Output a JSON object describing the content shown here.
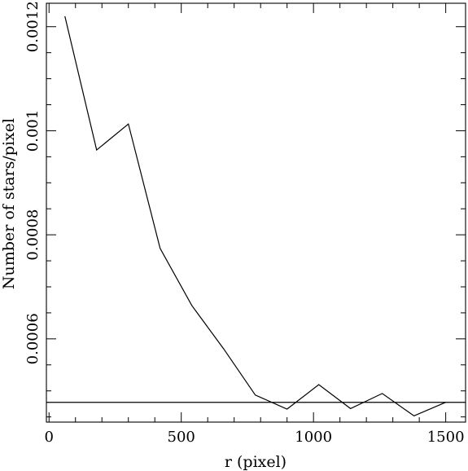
{
  "chart_data": {
    "type": "line",
    "xlabel": "r (pixel)",
    "ylabel": "Number of stars/pixel",
    "xlim": [
      -10,
      1575
    ],
    "ylim": [
      0.00044,
      0.001245
    ],
    "grid": false,
    "x_ticks": [
      0,
      500,
      1000,
      1500
    ],
    "x_tick_labels": [
      "0",
      "500",
      "1000",
      "1500"
    ],
    "y_ticks": [
      0.0006,
      0.0008,
      0.001,
      0.0012
    ],
    "y_tick_labels": [
      "0.0006",
      "0.0008",
      "0.001",
      "0.0012"
    ],
    "series": [
      {
        "x": [
          60,
          180,
          300,
          420,
          540,
          660,
          780,
          900,
          1020,
          1140,
          1260,
          1380,
          1500
        ],
        "y": [
          0.00122,
          0.000963,
          0.001013,
          0.000774,
          0.000664,
          0.000581,
          0.000492,
          0.000465,
          0.000512,
          0.000466,
          0.000495,
          0.000452,
          0.000478
        ]
      }
    ],
    "reference_lines": [
      {
        "orientation": "horizontal",
        "y": 0.000478
      }
    ]
  }
}
